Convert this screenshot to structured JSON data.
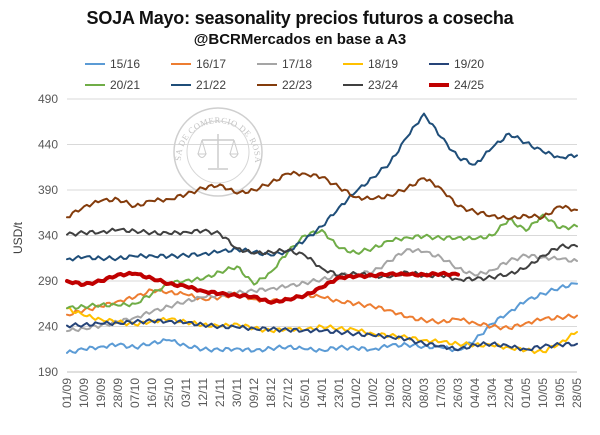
{
  "title": "SOJA Mayo: seasonality precios futuros a cosecha",
  "subtitle": "@BCRMercados en base a A3",
  "watermark": {
    "text": "BOLSA DE COMERCIO DE ROSARIO",
    "kind": "seal"
  },
  "chart_data": {
    "type": "line",
    "ylabel": "USD/t",
    "ylim": [
      190,
      490
    ],
    "yticks": [
      190,
      240,
      290,
      340,
      390,
      440,
      490
    ],
    "categories": [
      "01/09",
      "10/09",
      "19/09",
      "28/09",
      "07/10",
      "16/10",
      "25/10",
      "03/11",
      "12/11",
      "21/11",
      "30/11",
      "09/12",
      "18/12",
      "27/12",
      "05/01",
      "14/01",
      "23/01",
      "01/02",
      "10/02",
      "19/02",
      "28/02",
      "08/03",
      "17/03",
      "26/03",
      "04/04",
      "13/04",
      "22/04",
      "01/05",
      "10/05",
      "19/05",
      "28/05"
    ],
    "series": [
      {
        "name": "15/16",
        "color": "#5b9bd5",
        "width": 2,
        "values": [
          211,
          215,
          218,
          220,
          217,
          222,
          225,
          219,
          215,
          214,
          216,
          213,
          216,
          218,
          215,
          214,
          217,
          216,
          215,
          219,
          220,
          218,
          217,
          214,
          225,
          243,
          256,
          268,
          276,
          283,
          287
        ]
      },
      {
        "name": "16/17",
        "color": "#ed7d31",
        "width": 2,
        "values": [
          253,
          258,
          262,
          268,
          272,
          280,
          278,
          275,
          270,
          272,
          276,
          270,
          268,
          270,
          275,
          272,
          268,
          265,
          262,
          258,
          250,
          247,
          245,
          248,
          244,
          240,
          238,
          244,
          248,
          250,
          252
        ]
      },
      {
        "name": "17/18",
        "color": "#a5a5a5",
        "width": 2,
        "values": [
          235,
          238,
          241,
          245,
          250,
          256,
          262,
          268,
          272,
          275,
          277,
          279,
          282,
          284,
          288,
          292,
          296,
          298,
          300,
          312,
          325,
          322,
          316,
          304,
          296,
          302,
          312,
          318,
          316,
          314,
          312
        ]
      },
      {
        "name": "18/19",
        "color": "#ffc000",
        "width": 2,
        "values": [
          260,
          252,
          248,
          245,
          242,
          246,
          248,
          245,
          242,
          240,
          243,
          238,
          235,
          238,
          236,
          240,
          238,
          236,
          232,
          230,
          228,
          225,
          223,
          221,
          220,
          219,
          217,
          214,
          212,
          222,
          234
        ]
      },
      {
        "name": "19/20",
        "color": "#264478",
        "width": 2,
        "values": [
          241,
          242,
          243,
          244,
          245,
          246,
          246,
          244,
          242,
          240,
          239,
          238,
          237,
          236,
          236,
          235,
          234,
          232,
          230,
          229,
          226,
          221,
          219,
          214,
          220,
          221,
          218,
          215,
          218,
          220,
          221
        ]
      },
      {
        "name": "20/21",
        "color": "#70ad47",
        "width": 2,
        "values": [
          260,
          262,
          264,
          263,
          265,
          276,
          287,
          291,
          292,
          300,
          306,
          286,
          300,
          322,
          340,
          346,
          326,
          321,
          326,
          334,
          338,
          339,
          337,
          338,
          336,
          340,
          358,
          345,
          363,
          348,
          350
        ]
      },
      {
        "name": "21/22",
        "color": "#1f4e79",
        "width": 2,
        "values": [
          314,
          316,
          315,
          315,
          317,
          318,
          317,
          318,
          320,
          322,
          325,
          322,
          318,
          323,
          335,
          350,
          371,
          388,
          404,
          420,
          448,
          474,
          448,
          426,
          418,
          436,
          452,
          442,
          432,
          426,
          428
        ]
      },
      {
        "name": "22/23",
        "color": "#843c0c",
        "width": 2,
        "values": [
          360,
          372,
          378,
          380,
          372,
          378,
          380,
          385,
          392,
          396,
          386,
          390,
          398,
          408,
          408,
          404,
          393,
          382,
          380,
          384,
          392,
          403,
          392,
          372,
          366,
          362,
          358,
          362,
          360,
          372,
          368
        ]
      },
      {
        "name": "23/24",
        "color": "#404040",
        "width": 2,
        "values": [
          341,
          343,
          344,
          346,
          345,
          343,
          342,
          344,
          345,
          342,
          326,
          320,
          322,
          324,
          318,
          304,
          296,
          298,
          296,
          294,
          300,
          296,
          296,
          292,
          292,
          294,
          298,
          304,
          318,
          328,
          328
        ]
      },
      {
        "name": "24/25",
        "color": "#c00000",
        "width": 4,
        "values": [
          290,
          286,
          290,
          297,
          298,
          293,
          287,
          284,
          279,
          276,
          274,
          273,
          266,
          270,
          274,
          283,
          294,
          295,
          296,
          298,
          297,
          297,
          298,
          297,
          null,
          null,
          null,
          null,
          null,
          null,
          null
        ]
      }
    ]
  }
}
